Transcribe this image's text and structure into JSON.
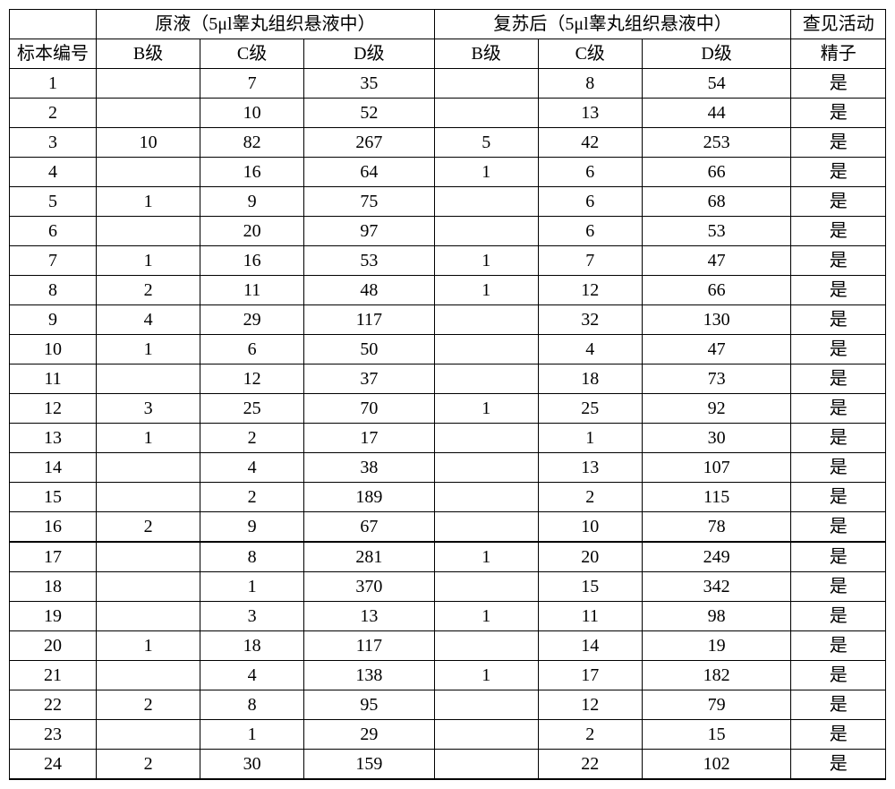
{
  "headers": {
    "group1": "原液（5μl睾丸组织悬液中）",
    "group2": "复苏后（5μl睾丸组织悬液中）",
    "activity_top": "查见活动",
    "activity_bottom": "精子",
    "sample_id": "标本编号",
    "b": "B级",
    "c": "C级",
    "d": "D级"
  },
  "rows": [
    {
      "id": "1",
      "b1": "",
      "c1": "7",
      "d1": "35",
      "b2": "",
      "c2": "8",
      "d2": "54",
      "act": "是"
    },
    {
      "id": "2",
      "b1": "",
      "c1": "10",
      "d1": "52",
      "b2": "",
      "c2": "13",
      "d2": "44",
      "act": "是"
    },
    {
      "id": "3",
      "b1": "10",
      "c1": "82",
      "d1": "267",
      "b2": "5",
      "c2": "42",
      "d2": "253",
      "act": "是"
    },
    {
      "id": "4",
      "b1": "",
      "c1": "16",
      "d1": "64",
      "b2": "1",
      "c2": "6",
      "d2": "66",
      "act": "是"
    },
    {
      "id": "5",
      "b1": "1",
      "c1": "9",
      "d1": "75",
      "b2": "",
      "c2": "6",
      "d2": "68",
      "act": "是"
    },
    {
      "id": "6",
      "b1": "",
      "c1": "20",
      "d1": "97",
      "b2": "",
      "c2": "6",
      "d2": "53",
      "act": "是"
    },
    {
      "id": "7",
      "b1": "1",
      "c1": "16",
      "d1": "53",
      "b2": "1",
      "c2": "7",
      "d2": "47",
      "act": "是"
    },
    {
      "id": "8",
      "b1": "2",
      "c1": "11",
      "d1": "48",
      "b2": "1",
      "c2": "12",
      "d2": "66",
      "act": "是"
    },
    {
      "id": "9",
      "b1": "4",
      "c1": "29",
      "d1": "117",
      "b2": "",
      "c2": "32",
      "d2": "130",
      "act": "是"
    },
    {
      "id": "10",
      "b1": "1",
      "c1": "6",
      "d1": "50",
      "b2": "",
      "c2": "4",
      "d2": "47",
      "act": "是"
    },
    {
      "id": "11",
      "b1": "",
      "c1": "12",
      "d1": "37",
      "b2": "",
      "c2": "18",
      "d2": "73",
      "act": "是"
    },
    {
      "id": "12",
      "b1": "3",
      "c1": "25",
      "d1": "70",
      "b2": "1",
      "c2": "25",
      "d2": "92",
      "act": "是"
    },
    {
      "id": "13",
      "b1": "1",
      "c1": "2",
      "d1": "17",
      "b2": "",
      "c2": "1",
      "d2": "30",
      "act": "是"
    },
    {
      "id": "14",
      "b1": "",
      "c1": "4",
      "d1": "38",
      "b2": "",
      "c2": "13",
      "d2": "107",
      "act": "是"
    },
    {
      "id": "15",
      "b1": "",
      "c1": "2",
      "d1": "189",
      "b2": "",
      "c2": "2",
      "d2": "115",
      "act": "是"
    },
    {
      "id": "16",
      "b1": "2",
      "c1": "9",
      "d1": "67",
      "b2": "",
      "c2": "10",
      "d2": "78",
      "act": "是",
      "thick": true
    },
    {
      "id": "17",
      "b1": "",
      "c1": "8",
      "d1": "281",
      "b2": "1",
      "c2": "20",
      "d2": "249",
      "act": "是"
    },
    {
      "id": "18",
      "b1": "",
      "c1": "1",
      "d1": "370",
      "b2": "",
      "c2": "15",
      "d2": "342",
      "act": "是"
    },
    {
      "id": "19",
      "b1": "",
      "c1": "3",
      "d1": "13",
      "b2": "1",
      "c2": "11",
      "d2": "98",
      "act": "是"
    },
    {
      "id": "20",
      "b1": "1",
      "c1": "18",
      "d1": "117",
      "b2": "",
      "c2": "14",
      "d2": "19",
      "act": "是"
    },
    {
      "id": "21",
      "b1": "",
      "c1": "4",
      "d1": "138",
      "b2": "1",
      "c2": "17",
      "d2": "182",
      "act": "是"
    },
    {
      "id": "22",
      "b1": "2",
      "c1": "8",
      "d1": "95",
      "b2": "",
      "c2": "12",
      "d2": "79",
      "act": "是"
    },
    {
      "id": "23",
      "b1": "",
      "c1": "1",
      "d1": "29",
      "b2": "",
      "c2": "2",
      "d2": "15",
      "act": "是"
    },
    {
      "id": "24",
      "b1": "2",
      "c1": "30",
      "d1": "159",
      "b2": "",
      "c2": "22",
      "d2": "102",
      "act": "是",
      "thick": true
    }
  ],
  "style": {
    "font_family": "SimSun",
    "font_size_pt": 15,
    "border_color": "#000000",
    "background_color": "#ffffff",
    "text_color": "#000000"
  }
}
